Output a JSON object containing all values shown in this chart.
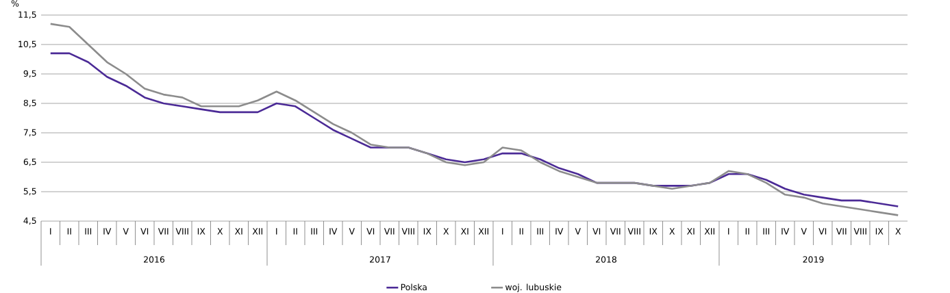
{
  "chart_data": {
    "type": "line",
    "ylabel": "%",
    "categories": [
      "I",
      "II",
      "III",
      "IV",
      "V",
      "VI",
      "VII",
      "VIII",
      "IX",
      "X",
      "XI",
      "XII",
      "I",
      "II",
      "III",
      "IV",
      "V",
      "VI",
      "VII",
      "VIII",
      "IX",
      "X",
      "XI",
      "XII",
      "I",
      "II",
      "III",
      "IV",
      "V",
      "VI",
      "VII",
      "VIII",
      "IX",
      "X",
      "XI",
      "XII",
      "I",
      "II",
      "III",
      "IV",
      "V",
      "VI",
      "VII",
      "VIII",
      "IX",
      "X"
    ],
    "annotations": [
      "2016",
      "2017",
      "2018",
      "2019"
    ],
    "series": [
      {
        "name": "Polska",
        "color": "#4b2a96",
        "values": [
          10.2,
          10.2,
          9.9,
          9.4,
          9.1,
          8.7,
          8.5,
          8.4,
          8.3,
          8.2,
          8.2,
          8.2,
          8.5,
          8.4,
          8.0,
          7.6,
          7.3,
          7.0,
          7.0,
          7.0,
          6.8,
          6.6,
          6.5,
          6.6,
          6.8,
          6.8,
          6.6,
          6.3,
          6.1,
          5.8,
          5.8,
          5.8,
          5.7,
          5.7,
          5.7,
          5.8,
          6.1,
          6.1,
          5.9,
          5.6,
          5.4,
          5.3,
          5.2,
          5.2,
          5.1,
          5.0
        ]
      },
      {
        "name": "woj. lubuskie",
        "color": "#8c8c8c",
        "values": [
          11.2,
          11.1,
          10.5,
          9.9,
          9.5,
          9.0,
          8.8,
          8.7,
          8.4,
          8.4,
          8.4,
          8.6,
          8.9,
          8.6,
          8.2,
          7.8,
          7.5,
          7.1,
          7.0,
          7.0,
          6.8,
          6.5,
          6.4,
          6.5,
          7.0,
          6.9,
          6.5,
          6.2,
          6.0,
          5.8,
          5.8,
          5.8,
          5.7,
          5.6,
          5.7,
          5.8,
          6.2,
          6.1,
          5.8,
          5.4,
          5.3,
          5.1,
          5.0,
          4.9,
          4.8,
          4.7
        ]
      }
    ],
    "ylim": [
      4.5,
      11.5
    ],
    "yticks": [
      {
        "value": 4.5,
        "label": "4,5"
      },
      {
        "value": 5.5,
        "label": "5,5"
      },
      {
        "value": 6.5,
        "label": "6,5"
      },
      {
        "value": 7.5,
        "label": "7,5"
      },
      {
        "value": 8.5,
        "label": "8,5"
      },
      {
        "value": 9.5,
        "label": "9,5"
      },
      {
        "value": 10.5,
        "label": "10,5"
      },
      {
        "value": 11.5,
        "label": "11,5"
      }
    ],
    "grid": "y",
    "legend": "bottom",
    "marker": "none",
    "line_style": "solid"
  }
}
